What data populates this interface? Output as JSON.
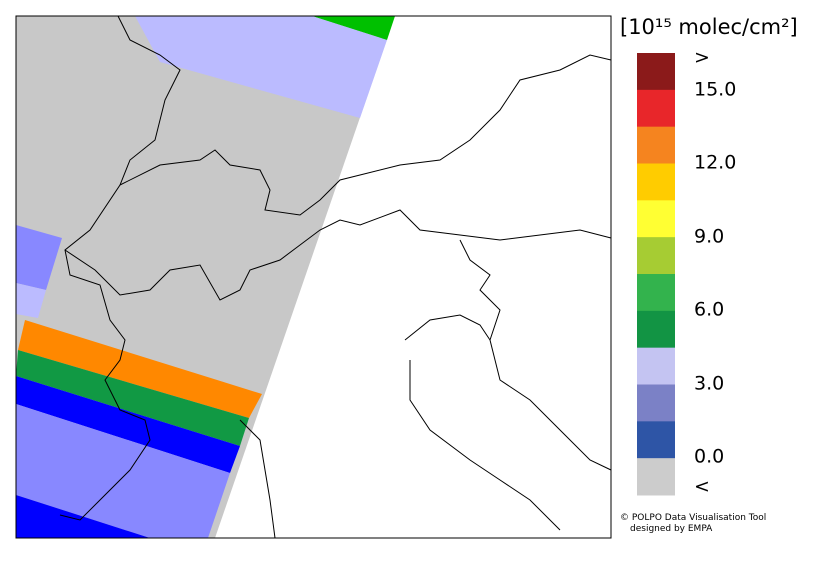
{
  "legend": {
    "title": "[10¹⁵ molec/cm²]",
    "colors": [
      "#8b1a1a",
      "#e8262a",
      "#f5841f",
      "#ffcc00",
      "#ffff33",
      "#a6cc33",
      "#33b34d",
      "#129444",
      "#c4c4f2",
      "#7b81c6",
      "#2e55a6",
      "#cccccc"
    ],
    "labels": [
      ">",
      "15.0",
      "12.0",
      "9.0",
      "6.0",
      "3.0",
      "0.0",
      "<"
    ]
  },
  "credit": [
    "© POLPO Data Visualisation Tool",
    "designed by EMPA"
  ]
}
